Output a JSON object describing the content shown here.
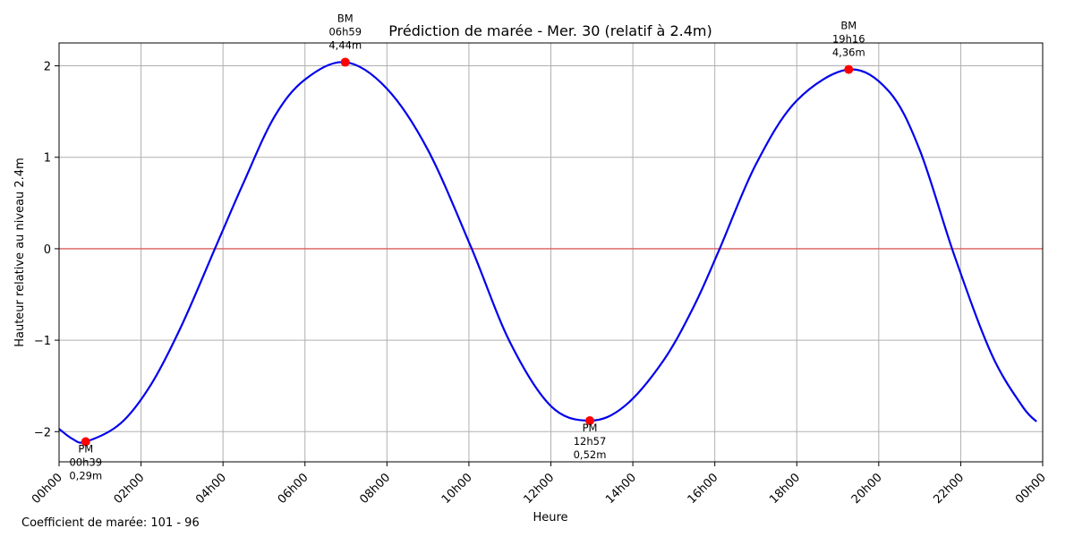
{
  "chart_data": {
    "type": "line",
    "title": "Prédiction de marée - Mer. 30 (relatif à 2.4m)",
    "xlabel": "Heure",
    "ylabel": "Hauteur relative au niveau 2.4m",
    "xlim_hours": [
      0,
      24
    ],
    "ylim": [
      -2.33,
      2.25
    ],
    "x_ticks": [
      {
        "hour": 0,
        "label": "00h00"
      },
      {
        "hour": 2,
        "label": "02h00"
      },
      {
        "hour": 4,
        "label": "04h00"
      },
      {
        "hour": 6,
        "label": "06h00"
      },
      {
        "hour": 8,
        "label": "08h00"
      },
      {
        "hour": 10,
        "label": "10h00"
      },
      {
        "hour": 12,
        "label": "12h00"
      },
      {
        "hour": 14,
        "label": "14h00"
      },
      {
        "hour": 16,
        "label": "16h00"
      },
      {
        "hour": 18,
        "label": "18h00"
      },
      {
        "hour": 20,
        "label": "20h00"
      },
      {
        "hour": 22,
        "label": "22h00"
      },
      {
        "hour": 24,
        "label": "00h00"
      }
    ],
    "y_ticks": [
      {
        "value": -2,
        "label": "−2"
      },
      {
        "value": -1,
        "label": "−1"
      },
      {
        "value": 0,
        "label": "0"
      },
      {
        "value": 1,
        "label": "1"
      },
      {
        "value": 2,
        "label": "2"
      }
    ],
    "grid": true,
    "reference_line": {
      "value": 0,
      "color": "#e06060"
    },
    "line_color": "#0000ee",
    "marker_color": "#ff0000",
    "extrema": [
      {
        "type": "PM",
        "time": "00h39",
        "hour": 0.65,
        "value": -2.11,
        "height": "0,29m",
        "position": "below"
      },
      {
        "type": "BM",
        "time": "06h59",
        "hour": 6.983,
        "value": 2.04,
        "height": "4,44m",
        "position": "above"
      },
      {
        "type": "PM",
        "time": "12h57",
        "hour": 12.95,
        "value": -1.88,
        "height": "0,52m",
        "position": "below"
      },
      {
        "type": "BM",
        "time": "19h16",
        "hour": 19.267,
        "value": 1.96,
        "height": "4,36m",
        "position": "above"
      }
    ],
    "series": [
      {
        "x": [
          0,
          0.33,
          0.65,
          1.5,
          2.25,
          3,
          3.85,
          4.5,
          5.25,
          6,
          6.983,
          8,
          9,
          10.05,
          11,
          12,
          12.95,
          13.8,
          14.75,
          15.5,
          16.1,
          17,
          18,
          19.267,
          20.25,
          21,
          21.85,
          22.75,
          23.5,
          23.85
        ],
        "y": [
          -1.97,
          -2.08,
          -2.11,
          -1.91,
          -1.48,
          -0.83,
          0.05,
          0.72,
          1.44,
          1.85,
          2.04,
          1.75,
          1.08,
          0.02,
          -1.02,
          -1.72,
          -1.88,
          -1.72,
          -1.22,
          -0.62,
          -0.02,
          0.92,
          1.62,
          1.96,
          1.72,
          1.08,
          -0.08,
          -1.15,
          -1.72,
          -1.89
        ]
      }
    ]
  },
  "footer": {
    "coefficient": "Coefficient de marée: 101 - 96"
  }
}
